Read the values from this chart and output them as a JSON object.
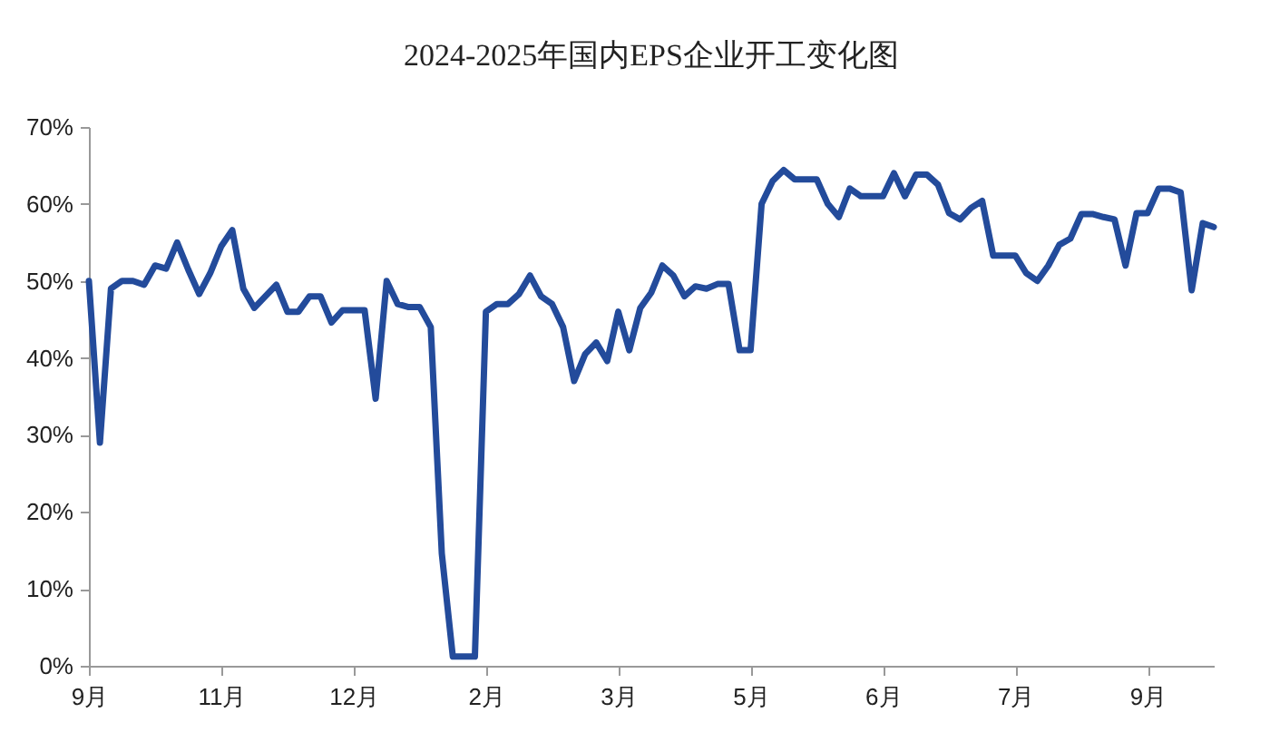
{
  "chart_data": {
    "type": "line",
    "title": "2024-2025年国内EPS企业开工变化图",
    "categories": [
      "9月",
      null,
      null,
      null,
      null,
      null,
      null,
      null,
      null,
      null,
      null,
      null,
      "11月",
      null,
      null,
      null,
      null,
      null,
      null,
      null,
      null,
      null,
      null,
      null,
      "12月",
      null,
      null,
      null,
      null,
      null,
      null,
      null,
      null,
      null,
      null,
      null,
      "2月",
      null,
      null,
      null,
      null,
      null,
      null,
      null,
      null,
      null,
      null,
      null,
      "3月",
      null,
      null,
      null,
      null,
      null,
      null,
      null,
      null,
      null,
      null,
      null,
      "5月",
      null,
      null,
      null,
      null,
      null,
      null,
      null,
      null,
      null,
      null,
      null,
      "6月",
      null,
      null,
      null,
      null,
      null,
      null,
      null,
      null,
      null,
      null,
      null,
      "7月",
      null,
      null,
      null,
      null,
      null,
      null,
      null,
      null,
      null,
      null,
      null,
      "9月",
      null,
      null,
      null,
      null,
      null,
      null
    ],
    "series": [
      {
        "color": "#234b9b",
        "values": [
          50,
          29,
          49,
          50,
          50,
          49.5,
          52,
          51.6,
          55,
          51.5,
          48.3,
          51,
          54.5,
          56.6,
          49,
          46.5,
          48,
          49.5,
          46,
          46,
          48,
          48,
          44.6,
          46.2,
          46.2,
          46.2,
          34.7,
          50,
          47,
          46.6,
          46.6,
          44,
          14.6,
          1.2,
          1.2,
          1.2,
          46,
          47,
          47,
          48.3,
          50.7,
          48,
          47,
          44,
          37,
          40.5,
          42,
          39.6,
          46,
          41,
          46.5,
          48.5,
          52,
          50.7,
          48,
          49.3,
          49,
          49.6,
          49.6,
          41,
          41,
          60,
          63,
          64.4,
          63.2,
          63.2,
          63.2,
          60,
          58.3,
          62,
          61,
          61,
          61,
          64,
          61,
          63.8,
          63.8,
          62.5,
          58.8,
          58,
          59.5,
          60.4,
          53.3,
          53.3,
          53.3,
          51,
          50,
          52,
          54.7,
          55.5,
          58.7,
          58.7,
          58.3,
          58,
          52,
          58.8,
          58.8,
          62,
          62,
          61.5,
          48.8,
          57.5,
          57
        ]
      }
    ],
    "ylim": [
      0,
      70
    ],
    "yticks": [
      {
        "value": 0,
        "label": "0%"
      },
      {
        "value": 10,
        "label": "10%"
      },
      {
        "value": 20,
        "label": "20%"
      },
      {
        "value": 30,
        "label": "30%"
      },
      {
        "value": 40,
        "label": "40%"
      },
      {
        "value": 50,
        "label": "50%"
      },
      {
        "value": 60,
        "label": "60%"
      },
      {
        "value": 70,
        "label": "70%"
      }
    ],
    "grid": false,
    "marker": "none",
    "line_style": "solid"
  }
}
